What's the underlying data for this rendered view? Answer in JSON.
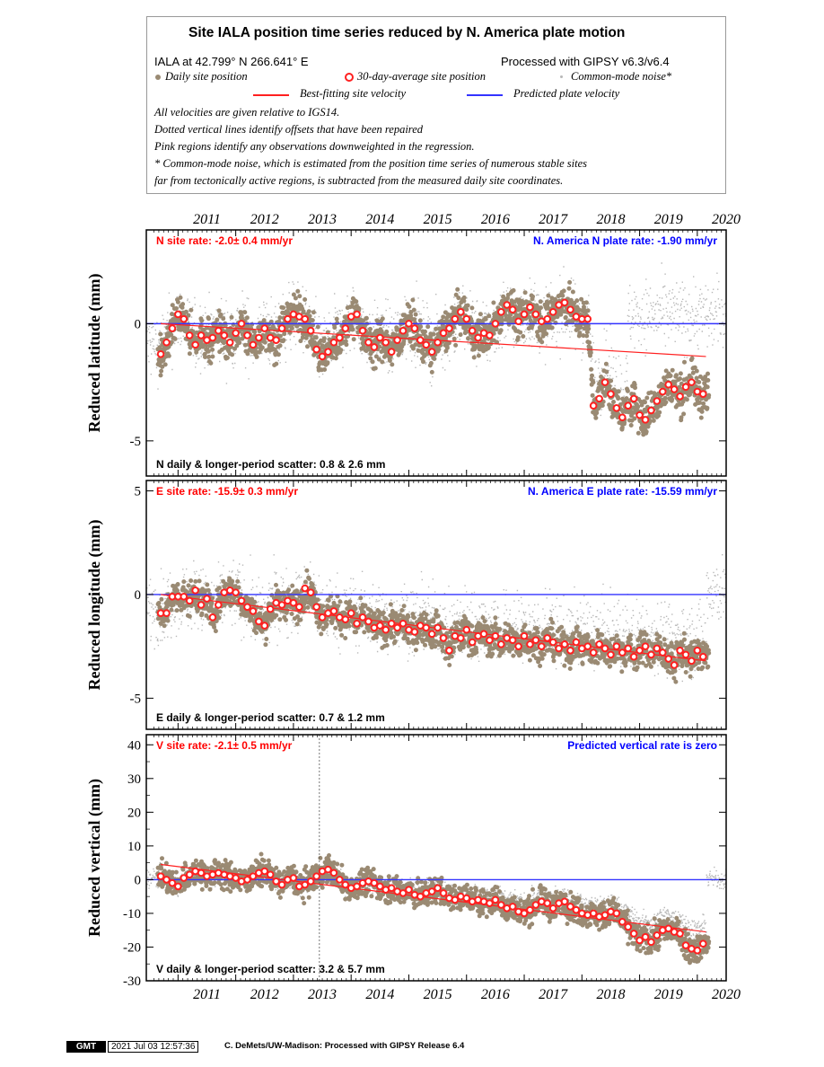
{
  "legend": {
    "title": "Site IALA position time series reduced by N. America plate motion",
    "site_line": "IALA at 42.799° N 266.641° E",
    "processed": "Processed with GIPSY v6.3/v6.4",
    "daily": "Daily site position",
    "avg30": "30-day-average site position",
    "cm": "Common-mode noise*",
    "best": "Best-fitting site velocity",
    "pred": "Predicted plate velocity",
    "note1": "All velocities are given relative to IGS14.",
    "note2": "Dotted vertical lines identify offsets that have been repaired",
    "note3": "Pink regions identify any observations downweighted in the regression.",
    "note4": "* Common-mode noise, which is estimated from the position time series of numerous stable sites",
    "note5": "far from tectonically active regions, is subtracted from the measured daily site coordinates."
  },
  "colors": {
    "daily": "#9a8a73",
    "avg30": "#ff2020",
    "common_mode": "#b8b8b8",
    "best_fit": "#ff2020",
    "plate": "#3333ff"
  },
  "footer": {
    "badge": "GMT",
    "timestamp": "2021 Jul 03 12:57:36",
    "credit": "C. DeMets/UW-Madison: Processed with GIPSY Release 6.4"
  },
  "chart_data": [
    {
      "type": "scatter",
      "ylabel": "Reduced latitude (mm)",
      "xlim": [
        2010.45,
        2020.5
      ],
      "ylim": [
        -6.5,
        4
      ],
      "xticks": [
        "2011",
        "2012",
        "2013",
        "2014",
        "2015",
        "2016",
        "2017",
        "2018",
        "2019",
        "2020"
      ],
      "yticks": [
        -5,
        0
      ],
      "rate_label": "N site rate:  -2.0± 0.4 mm/yr",
      "plate_label": "N. America N plate rate: -1.90 mm/yr",
      "scatter_label": "N daily & longer-period scatter:   0.8 &   2.6 mm",
      "best_fit": [
        [
          2010.7,
          0.0
        ],
        [
          2020.15,
          -1.4
        ]
      ],
      "plate_line": 0,
      "avg30_end": 2020.15,
      "series": [
        {
          "name": "30-day-average site position",
          "x": [
            2010.7,
            2010.8,
            2010.9,
            2011.0,
            2011.1,
            2011.2,
            2011.3,
            2011.4,
            2011.5,
            2011.6,
            2011.7,
            2011.8,
            2011.9,
            2012.0,
            2012.1,
            2012.2,
            2012.3,
            2012.4,
            2012.5,
            2012.6,
            2012.7,
            2012.8,
            2012.9,
            2013.0,
            2013.1,
            2013.2,
            2013.3,
            2013.4,
            2013.5,
            2013.6,
            2013.7,
            2013.8,
            2013.9,
            2014.0,
            2014.1,
            2014.2,
            2014.3,
            2014.4,
            2014.5,
            2014.6,
            2014.7,
            2014.8,
            2014.9,
            2015.0,
            2015.1,
            2015.2,
            2015.3,
            2015.4,
            2015.5,
            2015.6,
            2015.7,
            2015.8,
            2015.9,
            2016.0,
            2016.1,
            2016.2,
            2016.3,
            2016.4,
            2016.5,
            2016.6,
            2016.7,
            2016.8,
            2016.9,
            2017.0,
            2017.1,
            2017.2,
            2017.3,
            2017.4,
            2017.5,
            2017.6,
            2017.7,
            2017.8,
            2017.9,
            2018.0,
            2018.1,
            2018.2,
            2018.3,
            2018.4,
            2018.5,
            2018.6,
            2018.7,
            2018.8,
            2018.9,
            2019.0,
            2019.1,
            2019.2,
            2019.3,
            2019.4,
            2019.5,
            2019.6,
            2019.7,
            2019.8,
            2019.9,
            2020.0,
            2020.1
          ],
          "y": [
            -1.3,
            -0.8,
            -0.2,
            0.4,
            0.2,
            -0.5,
            -0.9,
            -0.5,
            -0.7,
            -0.6,
            -0.3,
            -0.5,
            -0.8,
            -0.4,
            0.0,
            -0.5,
            -0.9,
            -0.6,
            -0.2,
            -0.6,
            -0.7,
            -0.2,
            0.2,
            0.4,
            0.3,
            0.2,
            -0.3,
            -1.1,
            -1.4,
            -1.2,
            -0.8,
            -0.6,
            -0.2,
            0.3,
            0.4,
            -0.3,
            -0.8,
            -1.0,
            -0.6,
            -0.8,
            -1.2,
            -0.7,
            -0.3,
            0.0,
            -0.2,
            -0.7,
            -0.9,
            -1.2,
            -0.8,
            -0.4,
            -0.2,
            0.2,
            0.5,
            0.2,
            -0.3,
            -0.6,
            -0.4,
            -0.5,
            0.0,
            0.5,
            0.8,
            0.6,
            0.1,
            0.4,
            0.7,
            0.4,
            0.1,
            0.2,
            0.5,
            0.8,
            0.9,
            0.6,
            0.3,
            0.2,
            0.2,
            -3.5,
            -3.2,
            -2.5,
            -3.0,
            -3.6,
            -4.0,
            -3.5,
            -3.2,
            -3.9,
            -4.1,
            -3.7,
            -3.3,
            -2.9,
            -2.6,
            -2.8,
            -3.1,
            -2.7,
            -2.5,
            -2.9,
            -3.0
          ]
        }
      ]
    },
    {
      "type": "scatter",
      "ylabel": "Reduced longitude (mm)",
      "xlim": [
        2010.45,
        2020.5
      ],
      "ylim": [
        -6.5,
        5.5
      ],
      "xticks": [
        "2011",
        "2012",
        "2013",
        "2014",
        "2015",
        "2016",
        "2017",
        "2018",
        "2019",
        "2020"
      ],
      "yticks": [
        -5,
        0,
        5
      ],
      "rate_label": "E site rate:  -15.9± 0.3 mm/yr",
      "plate_label": "N. America E plate rate: -15.59 mm/yr",
      "scatter_label": "E daily & longer-period scatter:   0.7 &   1.2 mm",
      "best_fit": [
        [
          2010.7,
          0.0
        ],
        [
          2020.15,
          -3.2
        ]
      ],
      "plate_line": 0,
      "avg30_end": 2020.15,
      "series": [
        {
          "name": "30-day-average site position",
          "x": [
            2010.7,
            2010.8,
            2010.9,
            2011.0,
            2011.1,
            2011.2,
            2011.3,
            2011.4,
            2011.5,
            2011.6,
            2011.7,
            2011.8,
            2011.9,
            2012.0,
            2012.1,
            2012.2,
            2012.3,
            2012.4,
            2012.5,
            2012.6,
            2012.7,
            2012.8,
            2012.9,
            2013.0,
            2013.1,
            2013.2,
            2013.3,
            2013.4,
            2013.5,
            2013.6,
            2013.7,
            2013.8,
            2013.9,
            2014.0,
            2014.1,
            2014.2,
            2014.3,
            2014.4,
            2014.5,
            2014.6,
            2014.7,
            2014.8,
            2014.9,
            2015.0,
            2015.1,
            2015.2,
            2015.3,
            2015.4,
            2015.5,
            2015.6,
            2015.7,
            2015.8,
            2015.9,
            2016.0,
            2016.1,
            2016.2,
            2016.3,
            2016.4,
            2016.5,
            2016.6,
            2016.7,
            2016.8,
            2016.9,
            2017.0,
            2017.1,
            2017.2,
            2017.3,
            2017.4,
            2017.5,
            2017.6,
            2017.7,
            2017.8,
            2017.9,
            2018.0,
            2018.1,
            2018.2,
            2018.3,
            2018.4,
            2018.5,
            2018.6,
            2018.7,
            2018.8,
            2018.9,
            2019.0,
            2019.1,
            2019.2,
            2019.3,
            2019.4,
            2019.5,
            2019.6,
            2019.7,
            2019.8,
            2019.9,
            2020.0,
            2020.1
          ],
          "y": [
            -0.9,
            -0.9,
            -0.1,
            -0.1,
            -0.1,
            -0.3,
            0.2,
            -0.5,
            -0.2,
            -1.1,
            -0.5,
            0.1,
            0.2,
            0.1,
            -0.3,
            -0.6,
            -0.8,
            -1.3,
            -1.5,
            -0.7,
            -0.4,
            -0.5,
            -0.3,
            -0.4,
            -0.6,
            0.3,
            0.1,
            -0.6,
            -1.1,
            -0.9,
            -0.8,
            -1.1,
            -1.2,
            -0.9,
            -1.4,
            -1.1,
            -1.3,
            -1.6,
            -1.5,
            -1.7,
            -1.4,
            -1.6,
            -1.4,
            -1.7,
            -1.8,
            -1.5,
            -1.6,
            -1.9,
            -1.6,
            -2.1,
            -2.7,
            -2.0,
            -2.1,
            -1.7,
            -2.3,
            -2.0,
            -1.9,
            -2.2,
            -2.0,
            -2.4,
            -2.1,
            -2.2,
            -2.5,
            -2.0,
            -2.4,
            -2.2,
            -2.5,
            -2.1,
            -2.3,
            -2.6,
            -2.4,
            -2.7,
            -2.3,
            -2.6,
            -2.5,
            -2.8,
            -2.4,
            -2.6,
            -2.9,
            -2.5,
            -2.8,
            -2.6,
            -3.0,
            -2.7,
            -2.5,
            -2.9,
            -2.6,
            -2.8,
            -3.1,
            -3.4,
            -2.7,
            -2.9,
            -3.2,
            -2.7,
            -3.0
          ]
        }
      ]
    },
    {
      "type": "scatter",
      "ylabel": "Reduced vertical (mm)",
      "xlim": [
        2010.45,
        2020.5
      ],
      "ylim": [
        -30,
        43
      ],
      "xticks": [
        "2011",
        "2012",
        "2013",
        "2014",
        "2015",
        "2016",
        "2017",
        "2018",
        "2019",
        "2020"
      ],
      "yticks": [
        -30,
        -20,
        -10,
        0,
        10,
        20,
        30,
        40
      ],
      "rate_label": "V site rate:  -2.1± 0.5 mm/yr",
      "plate_label": "Predicted vertical rate is zero",
      "scatter_label": "V daily & longer-period scatter:   3.2 &   5.7 mm",
      "best_fit": [
        [
          2010.7,
          4.5
        ],
        [
          2020.15,
          -15.5
        ]
      ],
      "plate_line": 0,
      "offset_line": 2013.45,
      "avg30_end": 2020.15,
      "series": [
        {
          "name": "30-day-average site position",
          "x": [
            2010.7,
            2010.8,
            2010.9,
            2011.0,
            2011.1,
            2011.2,
            2011.3,
            2011.4,
            2011.5,
            2011.6,
            2011.7,
            2011.8,
            2011.9,
            2012.0,
            2012.1,
            2012.2,
            2012.3,
            2012.4,
            2012.5,
            2012.6,
            2012.7,
            2012.8,
            2012.9,
            2013.0,
            2013.1,
            2013.2,
            2013.3,
            2013.4,
            2013.5,
            2013.6,
            2013.7,
            2013.8,
            2013.9,
            2014.0,
            2014.1,
            2014.2,
            2014.3,
            2014.4,
            2014.5,
            2014.6,
            2014.7,
            2014.8,
            2014.9,
            2015.0,
            2015.1,
            2015.2,
            2015.3,
            2015.4,
            2015.5,
            2015.6,
            2015.7,
            2015.8,
            2015.9,
            2016.0,
            2016.1,
            2016.2,
            2016.3,
            2016.4,
            2016.5,
            2016.6,
            2016.7,
            2016.8,
            2016.9,
            2017.0,
            2017.1,
            2017.2,
            2017.3,
            2017.4,
            2017.5,
            2017.6,
            2017.7,
            2017.8,
            2017.9,
            2018.0,
            2018.1,
            2018.2,
            2018.3,
            2018.4,
            2018.5,
            2018.6,
            2018.7,
            2018.8,
            2018.9,
            2019.0,
            2019.1,
            2019.2,
            2019.3,
            2019.4,
            2019.5,
            2019.6,
            2019.7,
            2019.8,
            2019.9,
            2020.0,
            2020.1
          ],
          "y": [
            1.0,
            0.0,
            -1.0,
            -2.0,
            0.5,
            1.5,
            2.5,
            2.0,
            1.0,
            1.5,
            2.0,
            1.5,
            1.0,
            0.5,
            -0.5,
            0.0,
            1.0,
            2.0,
            2.5,
            1.5,
            -0.5,
            -1.5,
            0.0,
            0.5,
            -2.0,
            -1.5,
            -0.5,
            1.0,
            2.5,
            3.0,
            2.0,
            0.0,
            -1.5,
            -2.5,
            -2.0,
            -1.0,
            -0.5,
            -1.0,
            -2.0,
            -3.0,
            -2.5,
            -3.5,
            -4.0,
            -3.0,
            -4.5,
            -5.0,
            -4.0,
            -3.5,
            -2.5,
            -4.0,
            -5.5,
            -6.0,
            -5.0,
            -5.5,
            -6.5,
            -6.0,
            -6.5,
            -7.0,
            -6.0,
            -7.5,
            -8.5,
            -8.0,
            -9.5,
            -10.0,
            -9.0,
            -7.5,
            -6.5,
            -7.0,
            -8.5,
            -7.0,
            -6.5,
            -8.0,
            -9.0,
            -10.0,
            -10.5,
            -10.0,
            -11.0,
            -10.5,
            -9.5,
            -10.0,
            -12.5,
            -14.0,
            -16.0,
            -18.0,
            -17.0,
            -18.5,
            -16.5,
            -15.0,
            -14.5,
            -15.5,
            -16.0,
            -19.5,
            -20.5,
            -21.0,
            -19.0
          ]
        }
      ]
    }
  ]
}
